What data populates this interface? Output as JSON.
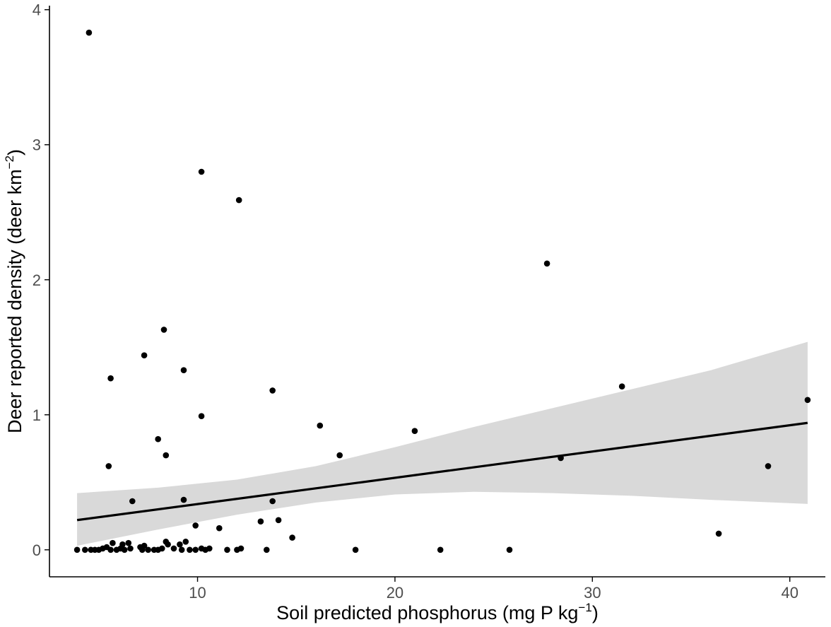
{
  "chart_data": {
    "type": "scatter",
    "title": "",
    "xlabel": {
      "text": "Soil predicted phosphorus (mg P kg",
      "sup": "−1",
      "suffix": ")"
    },
    "ylabel": {
      "text": "Deer reported density (deer km",
      "sup": "−2",
      "suffix": ")"
    },
    "xlim": [
      2.5,
      41.8
    ],
    "ylim": [
      -0.2,
      4.03
    ],
    "xticks": [
      10,
      20,
      30,
      40
    ],
    "yticks": [
      0,
      1,
      2,
      3,
      4
    ],
    "grid": false,
    "colors": {
      "points": "#000000",
      "fit_line": "#000000",
      "ribbon": "#d9d9d9",
      "axis": "#000000",
      "tick_label": "#4d4d4d"
    },
    "points": [
      {
        "x": 4.5,
        "y": 3.83
      },
      {
        "x": 10.2,
        "y": 2.8
      },
      {
        "x": 12.1,
        "y": 2.59
      },
      {
        "x": 27.7,
        "y": 2.12
      },
      {
        "x": 8.3,
        "y": 1.63
      },
      {
        "x": 7.3,
        "y": 1.44
      },
      {
        "x": 9.3,
        "y": 1.33
      },
      {
        "x": 5.6,
        "y": 1.27
      },
      {
        "x": 31.5,
        "y": 1.21
      },
      {
        "x": 13.8,
        "y": 1.18
      },
      {
        "x": 40.9,
        "y": 1.11
      },
      {
        "x": 10.2,
        "y": 0.99
      },
      {
        "x": 16.2,
        "y": 0.92
      },
      {
        "x": 21.0,
        "y": 0.88
      },
      {
        "x": 8.0,
        "y": 0.82
      },
      {
        "x": 8.4,
        "y": 0.7
      },
      {
        "x": 17.2,
        "y": 0.7
      },
      {
        "x": 28.4,
        "y": 0.68
      },
      {
        "x": 5.5,
        "y": 0.62
      },
      {
        "x": 38.9,
        "y": 0.62
      },
      {
        "x": 6.7,
        "y": 0.36
      },
      {
        "x": 9.3,
        "y": 0.37
      },
      {
        "x": 13.8,
        "y": 0.36
      },
      {
        "x": 14.1,
        "y": 0.22
      },
      {
        "x": 13.2,
        "y": 0.21
      },
      {
        "x": 9.9,
        "y": 0.18
      },
      {
        "x": 11.1,
        "y": 0.16
      },
      {
        "x": 36.4,
        "y": 0.12
      },
      {
        "x": 14.8,
        "y": 0.09
      },
      {
        "x": 9.4,
        "y": 0.06
      },
      {
        "x": 8.4,
        "y": 0.06
      },
      {
        "x": 5.7,
        "y": 0.05
      },
      {
        "x": 6.5,
        "y": 0.05
      },
      {
        "x": 6.2,
        "y": 0.04
      },
      {
        "x": 9.1,
        "y": 0.04
      },
      {
        "x": 7.3,
        "y": 0.03
      },
      {
        "x": 8.5,
        "y": 0.04
      },
      {
        "x": 3.9,
        "y": 0.0
      },
      {
        "x": 4.3,
        "y": 0.0
      },
      {
        "x": 4.6,
        "y": 0.0
      },
      {
        "x": 4.8,
        "y": 0.0
      },
      {
        "x": 5.0,
        "y": 0.0
      },
      {
        "x": 5.2,
        "y": 0.01
      },
      {
        "x": 5.4,
        "y": 0.02
      },
      {
        "x": 5.6,
        "y": 0.0
      },
      {
        "x": 5.9,
        "y": 0.0
      },
      {
        "x": 6.1,
        "y": 0.01
      },
      {
        "x": 6.3,
        "y": 0.0
      },
      {
        "x": 6.6,
        "y": 0.01
      },
      {
        "x": 7.1,
        "y": 0.02
      },
      {
        "x": 7.2,
        "y": 0.0
      },
      {
        "x": 7.5,
        "y": 0.0
      },
      {
        "x": 7.8,
        "y": 0.0
      },
      {
        "x": 8.0,
        "y": 0.0
      },
      {
        "x": 8.2,
        "y": 0.01
      },
      {
        "x": 8.8,
        "y": 0.01
      },
      {
        "x": 9.2,
        "y": 0.0
      },
      {
        "x": 9.6,
        "y": 0.0
      },
      {
        "x": 9.9,
        "y": 0.0
      },
      {
        "x": 10.2,
        "y": 0.01
      },
      {
        "x": 10.4,
        "y": 0.0
      },
      {
        "x": 10.6,
        "y": 0.01
      },
      {
        "x": 11.5,
        "y": 0.0
      },
      {
        "x": 12.0,
        "y": 0.0
      },
      {
        "x": 12.2,
        "y": 0.01
      },
      {
        "x": 13.5,
        "y": 0.0
      },
      {
        "x": 18.0,
        "y": 0.0
      },
      {
        "x": 22.3,
        "y": 0.0
      },
      {
        "x": 25.8,
        "y": 0.0
      }
    ],
    "fit_line": {
      "x": [
        3.9,
        40.9
      ],
      "y": [
        0.22,
        0.94
      ]
    },
    "ribbon": {
      "x": [
        3.9,
        8.0,
        12.0,
        16.0,
        20.0,
        24.0,
        28.0,
        32.0,
        36.0,
        40.9
      ],
      "upper": [
        0.42,
        0.46,
        0.52,
        0.62,
        0.76,
        0.91,
        1.05,
        1.19,
        1.33,
        1.54
      ],
      "lower": [
        0.03,
        0.15,
        0.26,
        0.35,
        0.41,
        0.43,
        0.42,
        0.4,
        0.37,
        0.34
      ]
    }
  }
}
